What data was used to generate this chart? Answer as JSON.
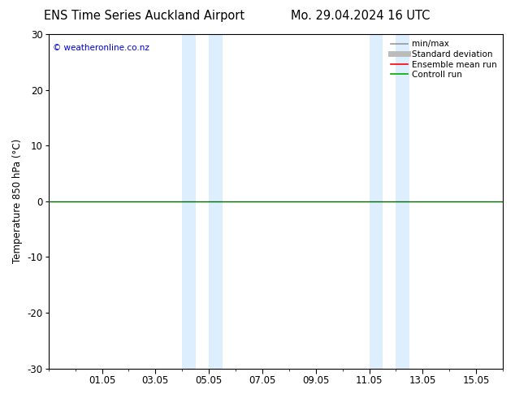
{
  "title_left": "ENS Time Series Auckland Airport",
  "title_right": "Mo. 29.04.2024 16 UTC",
  "ylabel": "Temperature 850 hPa (°C)",
  "watermark": "© weatheronline.co.nz",
  "ylim": [
    -30,
    30
  ],
  "yticks": [
    -30,
    -20,
    -10,
    0,
    10,
    20,
    30
  ],
  "xtick_labels": [
    "01.05",
    "03.05",
    "05.05",
    "07.05",
    "09.05",
    "11.05",
    "13.05",
    "15.05"
  ],
  "xtick_positions": [
    2,
    4,
    6,
    8,
    10,
    12,
    14,
    16
  ],
  "shade_bands": [
    {
      "x_start": 5.0,
      "x_end": 5.5,
      "color": "#ddeeff"
    },
    {
      "x_start": 6.0,
      "x_end": 6.5,
      "color": "#ddeeff"
    },
    {
      "x_start": 12.0,
      "x_end": 12.5,
      "color": "#ddeeff"
    },
    {
      "x_start": 13.0,
      "x_end": 13.5,
      "color": "#ddeeff"
    }
  ],
  "zero_line_color": "#006600",
  "background_color": "#ffffff",
  "plot_bg_color": "#ffffff",
  "legend_items": [
    {
      "label": "min/max",
      "color": "#999999",
      "lw": 1.2,
      "style": "-"
    },
    {
      "label": "Standard deviation",
      "color": "#bbbbbb",
      "lw": 5,
      "style": "-"
    },
    {
      "label": "Ensemble mean run",
      "color": "#ff0000",
      "lw": 1.2,
      "style": "-"
    },
    {
      "label": "Controll run",
      "color": "#00aa00",
      "lw": 1.2,
      "style": "-"
    }
  ],
  "title_fontsize": 10.5,
  "tick_fontsize": 8.5,
  "ylabel_fontsize": 8.5,
  "legend_fontsize": 7.5,
  "watermark_fontsize": 7.5,
  "watermark_color": "#0000cc"
}
